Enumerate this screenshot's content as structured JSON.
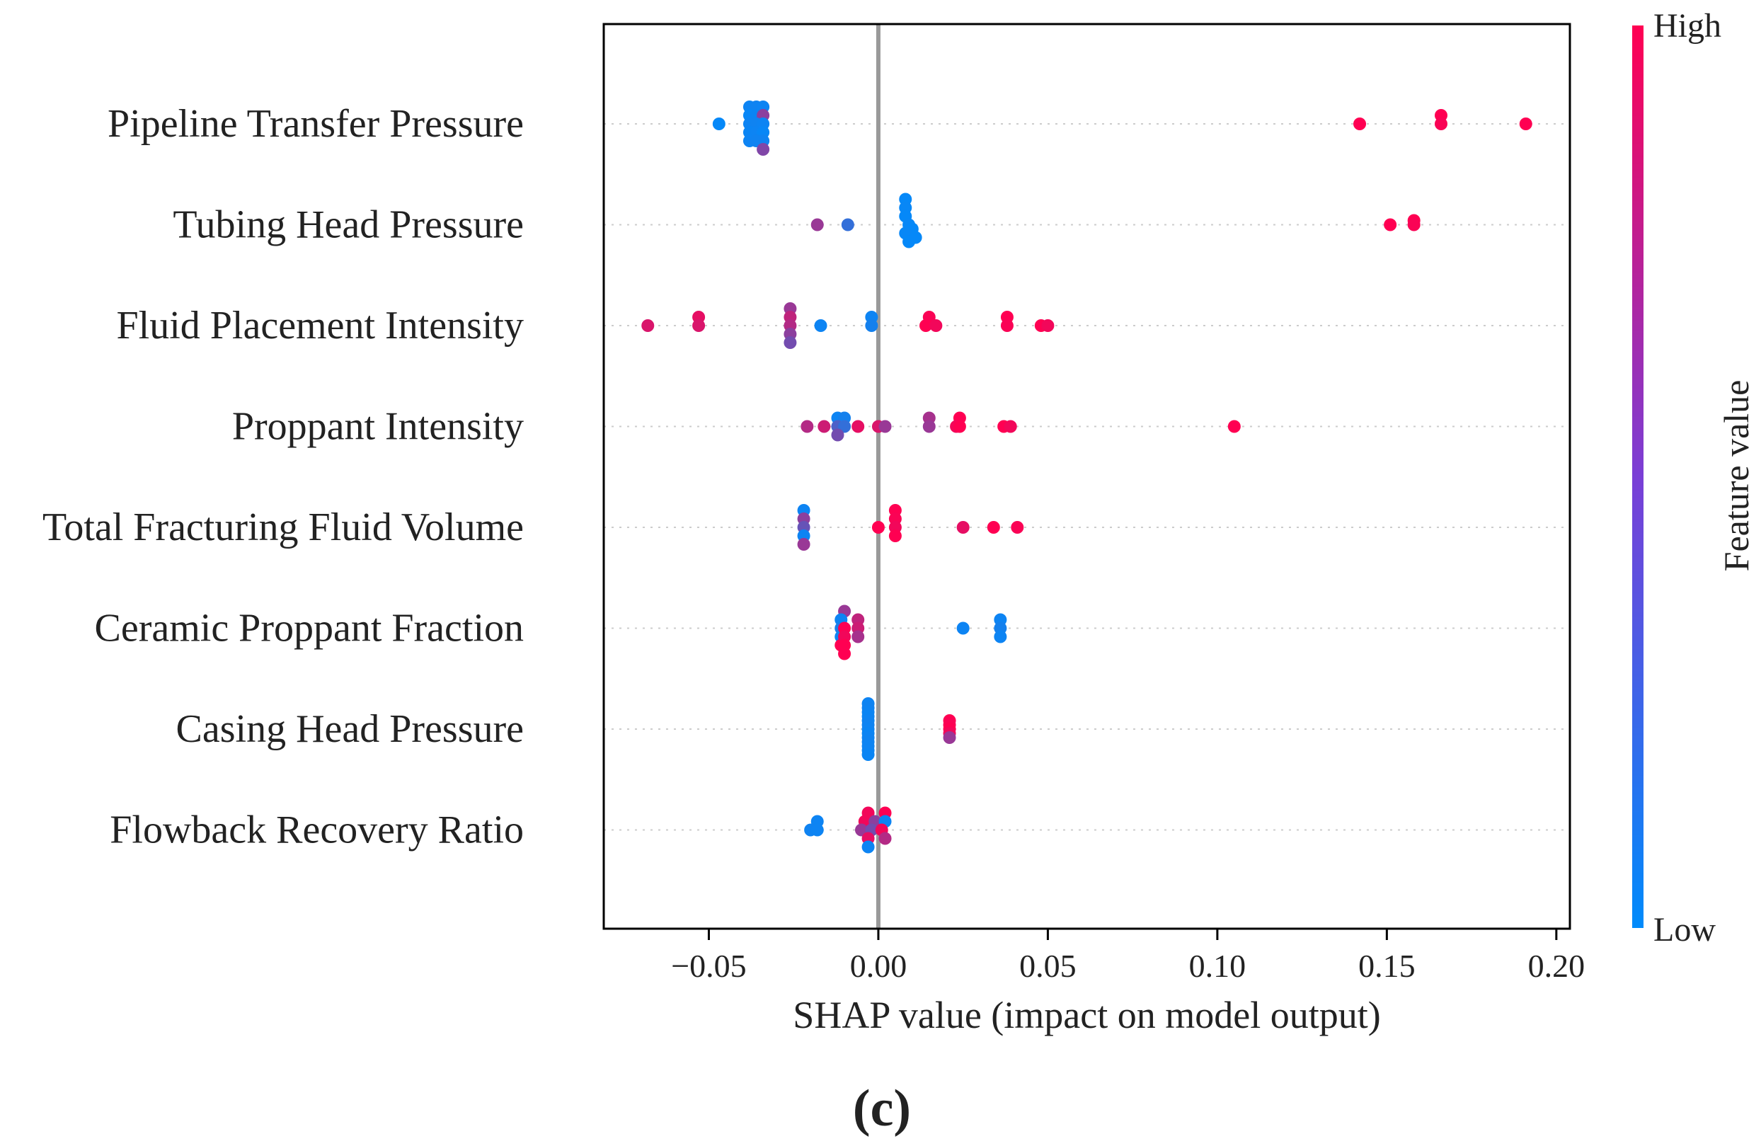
{
  "figure_label": "(c)",
  "chart_data": {
    "type": "scatter",
    "subtype": "shap-beeswarm",
    "xlabel": "SHAP value (impact on model output)",
    "xlim": [
      -0.081,
      0.204
    ],
    "xticks": [
      {
        "value": -0.05,
        "label": "−0.05"
      },
      {
        "value": 0.0,
        "label": "0.00"
      },
      {
        "value": 0.05,
        "label": "0.05"
      },
      {
        "value": 0.1,
        "label": "0.10"
      },
      {
        "value": 0.15,
        "label": "0.15"
      },
      {
        "value": 0.2,
        "label": "0.20"
      }
    ],
    "colorbar": {
      "label": "Feature value",
      "high_label": "High",
      "low_label": "Low",
      "low_color": "#008bfb",
      "high_color": "#ff0052"
    },
    "colors": {
      "axis": "#000000",
      "zero_line": "#999999",
      "row_grid": "#cccccc"
    },
    "features": [
      {
        "name": "Pipeline Transfer Pressure",
        "points": [
          {
            "x": -0.047,
            "dy": 0,
            "v": 0.02
          },
          {
            "x": -0.038,
            "dy": -2,
            "v": 0.05
          },
          {
            "x": -0.036,
            "dy": -2,
            "v": 0.06
          },
          {
            "x": -0.034,
            "dy": -2,
            "v": 0.05
          },
          {
            "x": -0.038,
            "dy": -1,
            "v": 0.03
          },
          {
            "x": -0.036,
            "dy": -1,
            "v": 0.04
          },
          {
            "x": -0.034,
            "dy": -1,
            "v": 0.55
          },
          {
            "x": -0.038,
            "dy": 0,
            "v": 0.05
          },
          {
            "x": -0.036,
            "dy": 0,
            "v": 0.06
          },
          {
            "x": -0.034,
            "dy": 0,
            "v": 0.05
          },
          {
            "x": -0.038,
            "dy": 1,
            "v": 0.04
          },
          {
            "x": -0.036,
            "dy": 1,
            "v": 0.05
          },
          {
            "x": -0.034,
            "dy": 1,
            "v": 0.03
          },
          {
            "x": -0.038,
            "dy": 2,
            "v": 0.05
          },
          {
            "x": -0.036,
            "dy": 2,
            "v": 0.06
          },
          {
            "x": -0.034,
            "dy": 2,
            "v": 0.06
          },
          {
            "x": -0.034,
            "dy": 3,
            "v": 0.5
          },
          {
            "x": 0.142,
            "dy": 0,
            "v": 1.0
          },
          {
            "x": 0.166,
            "dy": -1,
            "v": 1.0
          },
          {
            "x": 0.166,
            "dy": 0,
            "v": 0.98
          },
          {
            "x": 0.191,
            "dy": 0,
            "v": 1.0
          }
        ]
      },
      {
        "name": "Tubing Head Pressure",
        "points": [
          {
            "x": -0.018,
            "dy": 0,
            "v": 0.6
          },
          {
            "x": -0.009,
            "dy": 0,
            "v": 0.2
          },
          {
            "x": 0.008,
            "dy": -3,
            "v": 0.02
          },
          {
            "x": 0.008,
            "dy": -2,
            "v": 0.03
          },
          {
            "x": 0.008,
            "dy": -1,
            "v": 0.02
          },
          {
            "x": 0.009,
            "dy": 0,
            "v": 0.03
          },
          {
            "x": 0.01,
            "dy": 0.5,
            "v": 0.02
          },
          {
            "x": 0.008,
            "dy": 1,
            "v": 0.03
          },
          {
            "x": 0.011,
            "dy": 1.5,
            "v": 0.02
          },
          {
            "x": 0.009,
            "dy": 2,
            "v": 0.02
          },
          {
            "x": 0.151,
            "dy": 0,
            "v": 1.0
          },
          {
            "x": 0.158,
            "dy": -0.5,
            "v": 1.0
          },
          {
            "x": 0.158,
            "dy": 0,
            "v": 0.98
          }
        ]
      },
      {
        "name": "Fluid Placement Intensity",
        "points": [
          {
            "x": -0.068,
            "dy": 0,
            "v": 0.85
          },
          {
            "x": -0.053,
            "dy": -1,
            "v": 0.9
          },
          {
            "x": -0.053,
            "dy": 0,
            "v": 0.85
          },
          {
            "x": -0.026,
            "dy": -2,
            "v": 0.6
          },
          {
            "x": -0.026,
            "dy": -1,
            "v": 0.75
          },
          {
            "x": -0.026,
            "dy": 0,
            "v": 0.7
          },
          {
            "x": -0.026,
            "dy": 1,
            "v": 0.55
          },
          {
            "x": -0.026,
            "dy": 2,
            "v": 0.45
          },
          {
            "x": -0.017,
            "dy": 0,
            "v": 0.05
          },
          {
            "x": -0.002,
            "dy": -1,
            "v": 0.05
          },
          {
            "x": -0.002,
            "dy": 0,
            "v": 0.08
          },
          {
            "x": 0.015,
            "dy": -1,
            "v": 0.98
          },
          {
            "x": 0.014,
            "dy": 0,
            "v": 1.0
          },
          {
            "x": 0.017,
            "dy": 0,
            "v": 0.95
          },
          {
            "x": 0.038,
            "dy": -1,
            "v": 1.0
          },
          {
            "x": 0.038,
            "dy": 0,
            "v": 0.98
          },
          {
            "x": 0.048,
            "dy": 0,
            "v": 1.0
          },
          {
            "x": 0.05,
            "dy": 0,
            "v": 0.95
          }
        ]
      },
      {
        "name": "Proppant Intensity",
        "points": [
          {
            "x": -0.012,
            "dy": -1,
            "v": 0.05
          },
          {
            "x": -0.01,
            "dy": -1,
            "v": 0.08
          },
          {
            "x": -0.021,
            "dy": 0,
            "v": 0.7
          },
          {
            "x": -0.016,
            "dy": 0,
            "v": 0.8
          },
          {
            "x": -0.012,
            "dy": 0,
            "v": 0.3
          },
          {
            "x": -0.01,
            "dy": 0,
            "v": 0.2
          },
          {
            "x": -0.006,
            "dy": 0,
            "v": 0.9
          },
          {
            "x": 0.0,
            "dy": 0,
            "v": 0.85
          },
          {
            "x": 0.002,
            "dy": 0,
            "v": 0.6
          },
          {
            "x": -0.012,
            "dy": 1,
            "v": 0.45
          },
          {
            "x": 0.015,
            "dy": -1,
            "v": 0.65
          },
          {
            "x": 0.024,
            "dy": -1,
            "v": 1.0
          },
          {
            "x": 0.015,
            "dy": 0,
            "v": 0.6
          },
          {
            "x": 0.023,
            "dy": 0,
            "v": 0.95
          },
          {
            "x": 0.024,
            "dy": 0,
            "v": 1.0
          },
          {
            "x": 0.037,
            "dy": 0,
            "v": 1.0
          },
          {
            "x": 0.039,
            "dy": 0,
            "v": 0.95
          },
          {
            "x": 0.105,
            "dy": 0,
            "v": 1.0
          }
        ]
      },
      {
        "name": "Total Fracturing Fluid Volume",
        "points": [
          {
            "x": -0.022,
            "dy": -2,
            "v": 0.05
          },
          {
            "x": -0.022,
            "dy": -1,
            "v": 0.55
          },
          {
            "x": -0.022,
            "dy": 0,
            "v": 0.4
          },
          {
            "x": -0.022,
            "dy": 1,
            "v": 0.05
          },
          {
            "x": -0.022,
            "dy": 2,
            "v": 0.6
          },
          {
            "x": 0.005,
            "dy": -2,
            "v": 1.0
          },
          {
            "x": 0.005,
            "dy": -1,
            "v": 0.98
          },
          {
            "x": 0.0,
            "dy": 0,
            "v": 1.0
          },
          {
            "x": 0.005,
            "dy": 0,
            "v": 0.95
          },
          {
            "x": 0.005,
            "dy": 1,
            "v": 1.0
          },
          {
            "x": 0.025,
            "dy": 0,
            "v": 0.9
          },
          {
            "x": 0.034,
            "dy": 0,
            "v": 1.0
          },
          {
            "x": 0.041,
            "dy": 0,
            "v": 0.98
          }
        ]
      },
      {
        "name": "Ceramic Proppant Fraction",
        "points": [
          {
            "x": -0.01,
            "dy": -2,
            "v": 0.6
          },
          {
            "x": -0.011,
            "dy": -1,
            "v": 0.05
          },
          {
            "x": -0.011,
            "dy": 0,
            "v": 0.1
          },
          {
            "x": -0.011,
            "dy": 1,
            "v": 0.05
          },
          {
            "x": -0.011,
            "dy": 2,
            "v": 1.0
          },
          {
            "x": -0.006,
            "dy": -1,
            "v": 0.75
          },
          {
            "x": -0.006,
            "dy": 0,
            "v": 0.8
          },
          {
            "x": -0.006,
            "dy": 1,
            "v": 0.65
          },
          {
            "x": -0.01,
            "dy": 0,
            "v": 1.0
          },
          {
            "x": -0.01,
            "dy": 1,
            "v": 0.95
          },
          {
            "x": -0.01,
            "dy": 2,
            "v": 1.0
          },
          {
            "x": -0.01,
            "dy": 3,
            "v": 1.0
          },
          {
            "x": 0.025,
            "dy": 0,
            "v": 0.05
          },
          {
            "x": 0.036,
            "dy": -1,
            "v": 0.05
          },
          {
            "x": 0.036,
            "dy": 0,
            "v": 0.08
          },
          {
            "x": 0.036,
            "dy": 1,
            "v": 0.05
          }
        ]
      },
      {
        "name": "Casing Head Pressure",
        "points": [
          {
            "x": -0.003,
            "dy": -3,
            "v": 0.05
          },
          {
            "x": -0.003,
            "dy": -2.5,
            "v": 0.06
          },
          {
            "x": -0.003,
            "dy": -2,
            "v": 0.05
          },
          {
            "x": -0.003,
            "dy": -1.5,
            "v": 0.04
          },
          {
            "x": -0.003,
            "dy": -1,
            "v": 0.05
          },
          {
            "x": -0.003,
            "dy": -0.5,
            "v": 0.06
          },
          {
            "x": -0.003,
            "dy": 0,
            "v": 0.05
          },
          {
            "x": -0.003,
            "dy": 0.5,
            "v": 0.04
          },
          {
            "x": -0.003,
            "dy": 1,
            "v": 0.05
          },
          {
            "x": -0.003,
            "dy": 1.5,
            "v": 0.06
          },
          {
            "x": -0.003,
            "dy": 2,
            "v": 0.05
          },
          {
            "x": -0.003,
            "dy": 2.5,
            "v": 0.05
          },
          {
            "x": -0.003,
            "dy": 3,
            "v": 0.04
          },
          {
            "x": 0.021,
            "dy": -1,
            "v": 1.0
          },
          {
            "x": 0.021,
            "dy": -0.5,
            "v": 0.98
          },
          {
            "x": 0.021,
            "dy": 0,
            "v": 1.0
          },
          {
            "x": 0.021,
            "dy": 0.5,
            "v": 0.95
          },
          {
            "x": 0.021,
            "dy": 1,
            "v": 0.6
          }
        ]
      },
      {
        "name": "Flowback Recovery Ratio",
        "points": [
          {
            "x": -0.018,
            "dy": -1,
            "v": 0.05
          },
          {
            "x": -0.02,
            "dy": 0,
            "v": 0.06
          },
          {
            "x": -0.018,
            "dy": 0,
            "v": 0.05
          },
          {
            "x": -0.003,
            "dy": -2,
            "v": 0.95
          },
          {
            "x": 0.002,
            "dy": -2,
            "v": 1.0
          },
          {
            "x": -0.004,
            "dy": -1,
            "v": 0.95
          },
          {
            "x": -0.001,
            "dy": -1,
            "v": 0.55
          },
          {
            "x": 0.002,
            "dy": -1,
            "v": 0.05
          },
          {
            "x": -0.005,
            "dy": 0,
            "v": 0.6
          },
          {
            "x": -0.002,
            "dy": 0,
            "v": 0.45
          },
          {
            "x": 0.001,
            "dy": 0,
            "v": 0.95
          },
          {
            "x": -0.003,
            "dy": 1,
            "v": 0.9
          },
          {
            "x": 0.002,
            "dy": 1,
            "v": 0.7
          },
          {
            "x": -0.003,
            "dy": 2,
            "v": 0.05
          }
        ]
      }
    ]
  }
}
